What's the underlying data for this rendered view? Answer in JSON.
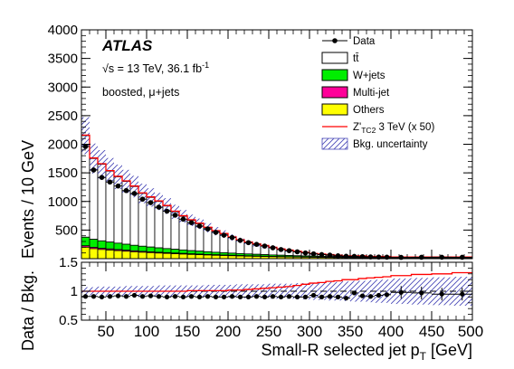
{
  "chart_data": {
    "type": "histogram",
    "annotations": {
      "experiment": "ATLAS",
      "energy": "√s = 13 TeV, 36.1 fb",
      "energy_sup": "-1",
      "region": "boosted, μ+jets"
    },
    "top_panel": {
      "ylabel": "Events / 10 GeV",
      "ylim": [
        0,
        4000
      ],
      "yticks": [
        "4000",
        "3500",
        "3000",
        "2500",
        "2000",
        "1500",
        "1000",
        "500"
      ]
    },
    "ratio_panel": {
      "ylabel": "Data / Bkg.",
      "ylim": [
        0.5,
        1.5
      ],
      "yticks": [
        "1.5",
        "1",
        "0.5"
      ]
    },
    "xlabel": "Small-R selected jet p",
    "xlabel_sub": "T",
    "xlabel_unit": " [GeV]",
    "xlim": [
      20,
      500
    ],
    "xticks": [
      "50",
      "100",
      "150",
      "200",
      "250",
      "300",
      "350",
      "400",
      "450",
      "500"
    ],
    "bin_edges": [
      20,
      30,
      40,
      50,
      60,
      70,
      80,
      90,
      100,
      110,
      120,
      130,
      140,
      150,
      160,
      170,
      180,
      190,
      200,
      210,
      220,
      230,
      240,
      250,
      260,
      270,
      280,
      290,
      300,
      310,
      320,
      330,
      340,
      350,
      360,
      370,
      380,
      390,
      400,
      425,
      450,
      475,
      500
    ],
    "stack": [
      {
        "name": "Others",
        "color": "#ffff00",
        "values": [
          200,
          175,
          160,
          150,
          140,
          130,
          120,
          112,
          105,
          98,
          92,
          86,
          80,
          74,
          69,
          64,
          59,
          55,
          51,
          47,
          43,
          40,
          37,
          34,
          31,
          29,
          27,
          25,
          23,
          21,
          19,
          17,
          16,
          15,
          14,
          13,
          12,
          11,
          10,
          9,
          7,
          6
        ]
      },
      {
        "name": "Multi-jet",
        "color": "#ff0099",
        "values": [
          25,
          23,
          21,
          20,
          19,
          18,
          17,
          16,
          15,
          14,
          13,
          12,
          11,
          10,
          10,
          9,
          9,
          8,
          8,
          7,
          7,
          6,
          6,
          5,
          5,
          5,
          4,
          4,
          4,
          3,
          3,
          3,
          3,
          3,
          2,
          2,
          2,
          2,
          2,
          2,
          1,
          1
        ]
      },
      {
        "name": "W+jets",
        "color": "#00ee00",
        "values": [
          150,
          140,
          130,
          120,
          112,
          104,
          96,
          89,
          83,
          77,
          71,
          66,
          61,
          56,
          52,
          48,
          44,
          41,
          38,
          35,
          32,
          30,
          28,
          26,
          24,
          22,
          20,
          19,
          17,
          16,
          15,
          14,
          13,
          12,
          11,
          10,
          9,
          8,
          8,
          7,
          6,
          5
        ]
      },
      {
        "name": "tt̄",
        "color": "#ffffff",
        "values": [
          1775,
          1412,
          1339,
          1240,
          1159,
          1098,
          1027,
          923,
          867,
          811,
          744,
          656,
          588,
          530,
          479,
          419,
          368,
          326,
          273,
          231,
          198,
          174,
          149,
          125,
          100,
          84,
          69,
          52,
          36,
          30,
          23,
          16,
          8,
          10,
          13,
          5,
          7,
          9,
          0,
          2,
          6,
          8
        ]
      }
    ],
    "signal": {
      "name": "Z'",
      "label_sub": "TC2",
      "label_rest": " 3 TeV (x 50)",
      "color": "#ff0000",
      "values": [
        2160,
        1760,
        1660,
        1540,
        1440,
        1360,
        1270,
        1150,
        1080,
        1010,
        930,
        830,
        750,
        680,
        620,
        550,
        490,
        440,
        380,
        330,
        290,
        260,
        230,
        200,
        170,
        150,
        130,
        110,
        90,
        80,
        70,
        60,
        50,
        50,
        50,
        40,
        40,
        40,
        30,
        30,
        30,
        30
      ]
    },
    "data": {
      "name": "Data",
      "x": [
        25,
        35,
        45,
        55,
        65,
        75,
        85,
        95,
        105,
        115,
        125,
        135,
        145,
        155,
        165,
        175,
        185,
        195,
        205,
        215,
        225,
        235,
        245,
        255,
        265,
        275,
        285,
        295,
        305,
        315,
        325,
        335,
        345,
        355,
        365,
        375,
        385,
        395,
        412.5,
        437.5,
        462.5,
        487.5
      ],
      "values": [
        1960,
        1550,
        1420,
        1340,
        1270,
        1190,
        1140,
        1040,
        980,
        900,
        830,
        760,
        690,
        630,
        570,
        520,
        460,
        410,
        370,
        320,
        280,
        250,
        220,
        190,
        160,
        140,
        120,
        100,
        85,
        72,
        62,
        50,
        42,
        40,
        35,
        30,
        28,
        26,
        22,
        24,
        25,
        24
      ]
    },
    "ratio": {
      "values": [
        0.91,
        0.91,
        0.9,
        0.91,
        0.92,
        0.91,
        0.93,
        0.91,
        0.92,
        0.91,
        0.9,
        0.91,
        0.9,
        0.91,
        0.9,
        0.91,
        0.9,
        0.9,
        0.91,
        0.9,
        0.9,
        0.91,
        0.9,
        0.91,
        0.9,
        0.91,
        0.9,
        0.9,
        0.93,
        0.9,
        0.91,
        0.9,
        0.88,
        0.97,
        0.92,
        0.91,
        0.93,
        0.94,
        0.98,
        0.97,
        0.95,
        0.95
      ]
    },
    "ratio_signal": {
      "values": [
        1.0,
        1.0,
        1.0,
        1.0,
        1.0,
        1.0,
        1.0,
        1.0,
        1.0,
        1.0,
        1.0,
        1.0,
        1.0,
        1.01,
        1.01,
        1.01,
        1.01,
        1.01,
        1.02,
        1.02,
        1.03,
        1.04,
        1.05,
        1.06,
        1.07,
        1.08,
        1.1,
        1.12,
        1.14,
        1.15,
        1.17,
        1.18,
        1.2,
        1.2,
        1.22,
        1.23,
        1.24,
        1.25,
        1.27,
        1.29,
        1.3,
        1.32
      ]
    },
    "uncertainty": {
      "name": "Bkg. uncertainty",
      "color": "#3333aa",
      "rel": 0.15,
      "ratio_rel": [
        0.07,
        0.07,
        0.08,
        0.08,
        0.08,
        0.09,
        0.09,
        0.09,
        0.09,
        0.1,
        0.1,
        0.1,
        0.1,
        0.1,
        0.1,
        0.11,
        0.11,
        0.11,
        0.11,
        0.12,
        0.12,
        0.12,
        0.12,
        0.13,
        0.13,
        0.13,
        0.14,
        0.14,
        0.15,
        0.15,
        0.16,
        0.16,
        0.17,
        0.18,
        0.18,
        0.19,
        0.2,
        0.2,
        0.22,
        0.23,
        0.24,
        0.25
      ]
    },
    "legend": {
      "placement": "top-right",
      "entries": [
        {
          "key": "data",
          "label": "Data"
        },
        {
          "key": "ttbar",
          "label": "tt̄"
        },
        {
          "key": "wjets",
          "label": "W+jets"
        },
        {
          "key": "multijet",
          "label": "Multi-jet"
        },
        {
          "key": "others",
          "label": "Others"
        },
        {
          "key": "signal",
          "label": "Z'",
          "sub": "TC2",
          "rest": " 3 TeV (x 50)"
        },
        {
          "key": "unc",
          "label": "Bkg. uncertainty"
        }
      ]
    }
  }
}
